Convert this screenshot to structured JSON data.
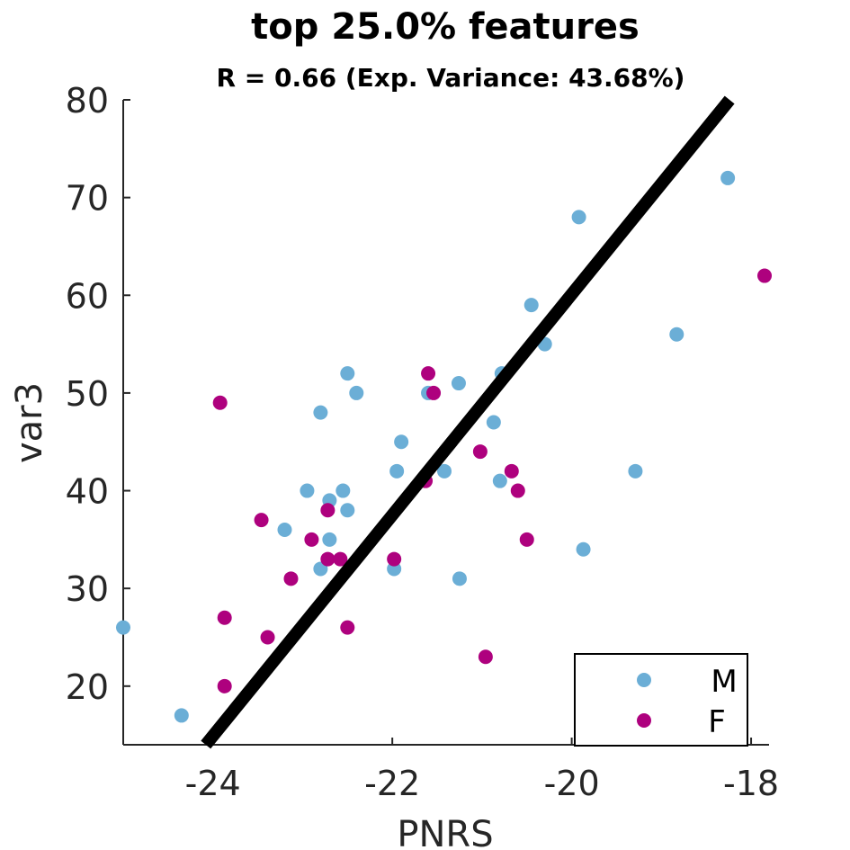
{
  "chart_data": {
    "type": "scatter",
    "title": "top 25.0% features",
    "subtitle": "R = 0.66 (Exp. Variance: 43.68%)",
    "xlabel": "PNRS",
    "ylabel": "var3",
    "xlim": [
      -25,
      -17.8
    ],
    "ylim": [
      14,
      80
    ],
    "xticks": [
      -24,
      -22,
      -20,
      -18
    ],
    "xtick_labels": [
      "-24",
      "-22",
      "-20",
      "-18"
    ],
    "yticks": [
      20,
      30,
      40,
      50,
      60,
      70,
      80
    ],
    "ytick_labels": [
      "20",
      "30",
      "40",
      "50",
      "60",
      "70",
      "80"
    ],
    "grid": false,
    "legend_position": "bottom-right",
    "fit_line": {
      "x": [
        -24.08,
        -18.24
      ],
      "y": [
        14,
        80
      ],
      "color": "#000000"
    },
    "series": [
      {
        "name": "M",
        "color": "#6baed6",
        "points": [
          [
            -25.0,
            26
          ],
          [
            -24.35,
            17
          ],
          [
            -23.2,
            36
          ],
          [
            -22.95,
            40
          ],
          [
            -22.8,
            48
          ],
          [
            -22.8,
            32
          ],
          [
            -22.7,
            39
          ],
          [
            -22.7,
            35
          ],
          [
            -22.55,
            40
          ],
          [
            -22.5,
            38
          ],
          [
            -22.5,
            52
          ],
          [
            -22.4,
            50
          ],
          [
            -21.98,
            32
          ],
          [
            -21.95,
            42
          ],
          [
            -21.9,
            45
          ],
          [
            -21.6,
            50
          ],
          [
            -21.42,
            42
          ],
          [
            -21.26,
            51
          ],
          [
            -21.25,
            31
          ],
          [
            -20.78,
            52
          ],
          [
            -20.87,
            47
          ],
          [
            -20.8,
            41
          ],
          [
            -20.45,
            59
          ],
          [
            -20.3,
            55
          ],
          [
            -19.92,
            68
          ],
          [
            -19.87,
            34
          ],
          [
            -19.29,
            42
          ],
          [
            -18.83,
            56
          ],
          [
            -18.26,
            72
          ]
        ]
      },
      {
        "name": "F",
        "color": "#ae017e",
        "points": [
          [
            -23.92,
            49
          ],
          [
            -23.87,
            27
          ],
          [
            -23.87,
            20
          ],
          [
            -23.46,
            37
          ],
          [
            -23.39,
            25
          ],
          [
            -23.13,
            31
          ],
          [
            -22.9,
            35
          ],
          [
            -22.72,
            38
          ],
          [
            -22.72,
            33
          ],
          [
            -22.58,
            33
          ],
          [
            -22.5,
            26
          ],
          [
            -21.98,
            33
          ],
          [
            -21.63,
            41
          ],
          [
            -21.6,
            52
          ],
          [
            -21.54,
            50
          ],
          [
            -21.02,
            44
          ],
          [
            -20.96,
            23
          ],
          [
            -20.67,
            42
          ],
          [
            -20.6,
            40
          ],
          [
            -20.5,
            35
          ],
          [
            -17.85,
            62
          ]
        ]
      }
    ]
  }
}
